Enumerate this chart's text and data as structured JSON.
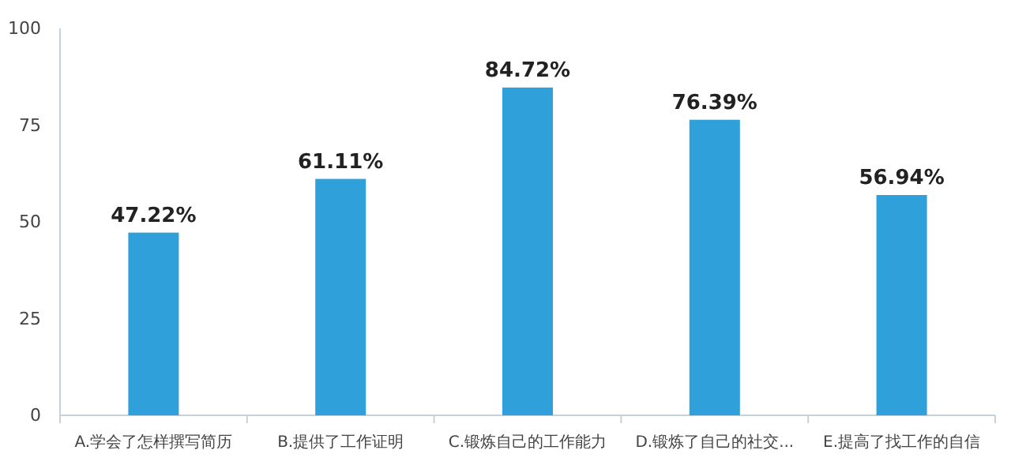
{
  "chart_data": {
    "type": "bar",
    "categories": [
      "A.学会了怎样撰写简历",
      "B.提供了工作证明",
      "C.锻炼自己的工作能力",
      "D.锻炼了自己的社交...",
      "E.提高了找工作的自信"
    ],
    "values": [
      47.22,
      61.11,
      84.72,
      76.39,
      56.94
    ],
    "value_labels": [
      "47.22%",
      "61.11%",
      "84.72%",
      "76.39%",
      "56.94%"
    ],
    "color": "#2fa0da",
    "ylim": [
      0,
      100
    ],
    "yticks": [
      0,
      25,
      50,
      75,
      100
    ],
    "grid": false
  }
}
